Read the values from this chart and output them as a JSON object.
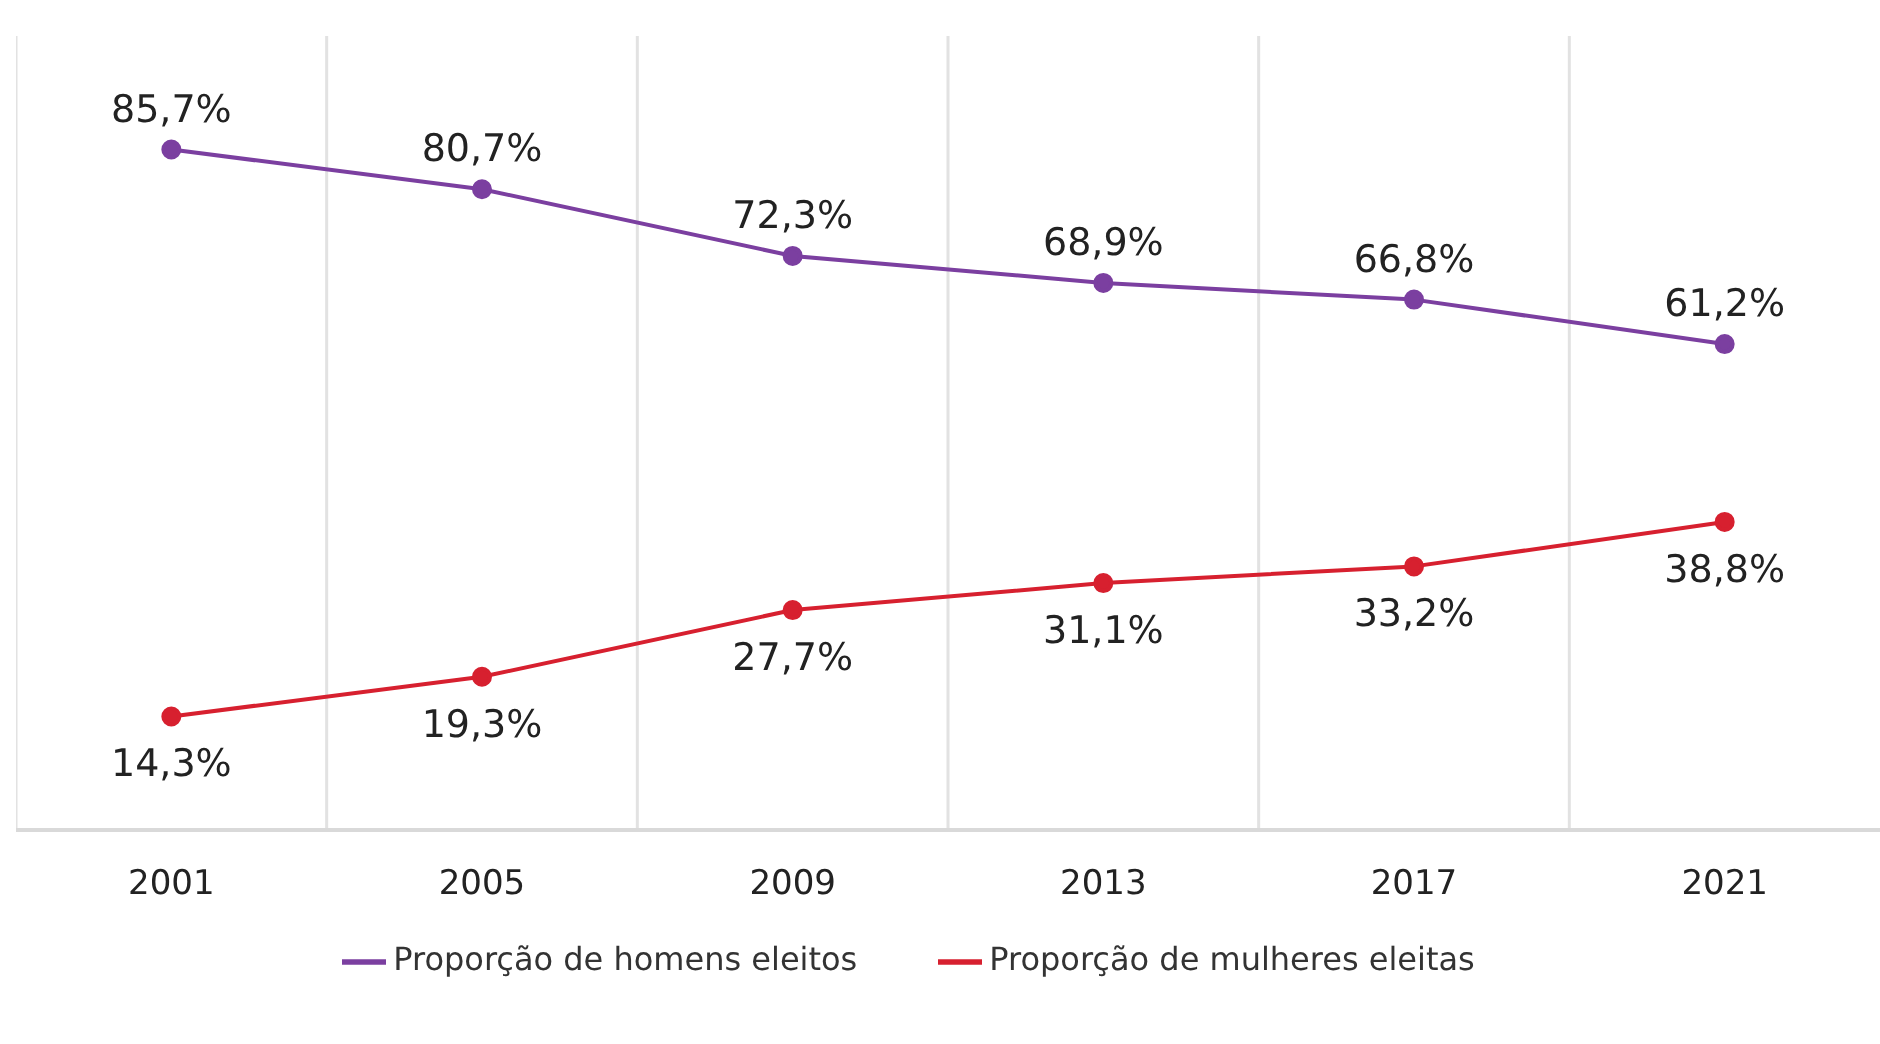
{
  "chart_data": {
    "type": "line",
    "categories": [
      "2001",
      "2005",
      "2009",
      "2013",
      "2017",
      "2021"
    ],
    "series": [
      {
        "name": "Proporção de mulheres eleitas",
        "color": "#d7202f",
        "values": [
          14.3,
          19.3,
          27.7,
          31.1,
          33.2,
          38.8
        ],
        "value_labels": [
          "14,3%",
          "19,3%",
          "27,7%",
          "31,1%",
          "33,2%",
          "38,8%"
        ]
      },
      {
        "name": "Proporção de homens eleitos",
        "color": "#7b3fa0",
        "values": [
          85.7,
          80.7,
          72.3,
          68.9,
          66.8,
          61.2
        ],
        "value_labels": [
          "85,7%",
          "80,7%",
          "72,3%",
          "68,9%",
          "66,8%",
          "61,2%"
        ]
      }
    ],
    "ylim": [
      0,
      100
    ],
    "tick_labels": "x",
    "grid": "x",
    "legend": "bottom",
    "marker": "circle",
    "line_style": "solid"
  }
}
